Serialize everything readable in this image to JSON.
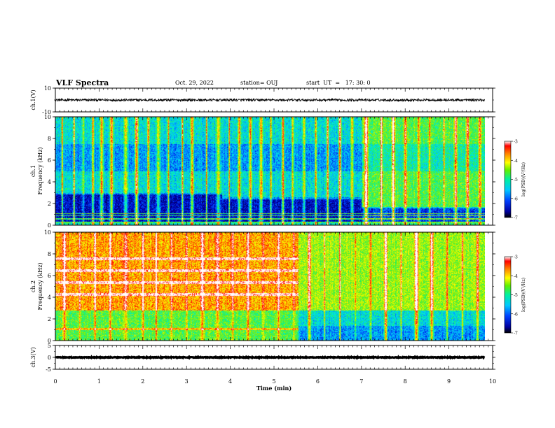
{
  "header": {
    "title": "VLF Spectra",
    "date": "Oct. 29, 2022",
    "station": "station= OUJ",
    "start": "start  UT  =   17: 30: 0"
  },
  "chart_data": [
    {
      "type": "line",
      "panel": "ch1-waveform",
      "ylabel": "ch.1(V)",
      "ylim": [
        -10,
        10
      ],
      "yticks": [
        "10",
        "-10"
      ],
      "series": [
        {
          "values_level": 0,
          "noise_amplitude": 0.6
        }
      ]
    },
    {
      "type": "heatmap",
      "panel": "ch1-spectrogram",
      "ylabel": "ch.1\nFrequency (kHz)",
      "ylabel_lines": [
        "ch.1",
        "Frequency (kHz)"
      ],
      "ylim": [
        0,
        10
      ],
      "yticks": [
        "0",
        "2",
        "4",
        "6",
        "8",
        "10"
      ],
      "xlim": [
        0,
        10
      ],
      "data_extent_min": 9.82,
      "colorbar": {
        "label": "log(PSD)(V²/Hz)",
        "range": [
          -7,
          -3
        ],
        "ticks": [
          "-3",
          "-4",
          "-5",
          "-6",
          "-7"
        ]
      },
      "segments": [
        {
          "t_start": 0,
          "t_end": 3.8,
          "band_top_khz": 3.0,
          "background_level": -5.5,
          "quiet_level": -6.6
        },
        {
          "t_start": 3.8,
          "t_end": 7.0,
          "band_top_khz": 2.6,
          "background_level": -5.5,
          "quiet_level": -6.6
        },
        {
          "t_start": 7.0,
          "t_end": 9.82,
          "band_top_khz": 1.7,
          "background_level": -4.9,
          "quiet_level": -6.3
        }
      ],
      "spike_times_min": [
        0.15,
        0.42,
        0.63,
        0.85,
        1.05,
        1.28,
        1.6,
        1.85,
        2.12,
        2.35,
        2.58,
        2.9,
        3.12,
        3.45,
        3.72,
        3.97,
        4.2,
        4.45,
        4.7,
        4.92,
        5.2,
        5.42,
        5.68,
        5.95,
        6.22,
        6.5,
        6.78,
        7.1,
        7.45,
        7.72,
        8.0,
        8.3,
        8.55,
        8.88,
        9.15,
        9.42,
        9.7
      ],
      "line_freqs_khz": [
        0.3,
        0.6,
        0.9,
        1.1
      ]
    },
    {
      "type": "heatmap",
      "panel": "ch2-spectrogram",
      "ylabel": "ch.2\nFrequency (kHz)",
      "ylabel_lines": [
        "ch.2",
        "Frequency (kHz)"
      ],
      "ylim": [
        0,
        10
      ],
      "yticks": [
        "0",
        "2",
        "4",
        "6",
        "8",
        "10"
      ],
      "xlim": [
        0,
        10
      ],
      "data_extent_min": 9.82,
      "colorbar": {
        "label": "log(PSD)(V²/Hz)",
        "range": [
          -7,
          -3
        ],
        "ticks": [
          "-3",
          "-4",
          "-5",
          "-6",
          "-7"
        ]
      },
      "segments": [
        {
          "t_start": 0,
          "t_end": 5.55,
          "background_level": -4.2,
          "upper_level": -3.9,
          "lower_level": -4.9
        },
        {
          "t_start": 5.55,
          "t_end": 9.82,
          "background_level": -4.8,
          "upper_level": -4.6,
          "lower_level": -5.9
        }
      ],
      "harmonic_lines_khz": [
        7.6,
        6.5,
        5.4,
        4.3,
        1.1
      ],
      "spike_times_min": [
        0.2,
        0.55,
        0.9,
        1.25,
        1.6,
        2.0,
        2.3,
        2.65,
        3.0,
        3.35,
        3.7,
        4.05,
        4.4,
        4.75,
        5.1,
        5.45,
        5.8,
        6.15,
        6.5,
        6.85,
        7.2,
        7.55,
        7.9,
        8.25,
        8.6,
        8.95,
        9.3,
        9.65
      ]
    },
    {
      "type": "line",
      "panel": "ch3-waveform",
      "ylabel": "ch.3(V)",
      "ylim": [
        -5,
        5
      ],
      "yticks": [
        "5",
        "0",
        "-5"
      ],
      "series": [
        {
          "values_level": 0,
          "noise_amplitude": 0.15
        }
      ]
    }
  ],
  "xaxis": {
    "label": "Time  (min)",
    "range": [
      0,
      10
    ],
    "ticks": [
      "0",
      "1",
      "2",
      "3",
      "4",
      "5",
      "6",
      "7",
      "8",
      "9",
      "10"
    ]
  },
  "colors": {
    "background": "#ffffff",
    "ink": "#000000",
    "colormap": [
      "#000060",
      "#0000c8",
      "#0050ff",
      "#00b4ff",
      "#00f0d2",
      "#28f050",
      "#a0f000",
      "#ffff00",
      "#ff9000",
      "#ff0000",
      "#ffffff"
    ]
  }
}
